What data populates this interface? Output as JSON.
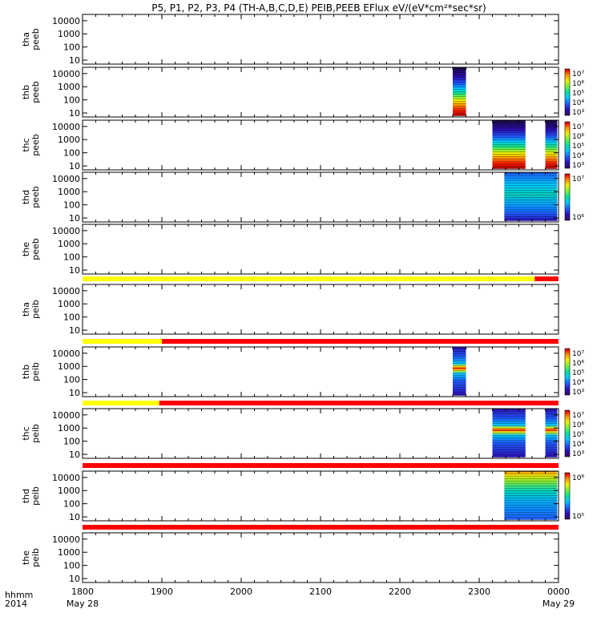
{
  "title": "P5, P1, P2, P3, P4 (TH-A,B,C,D,E) PEIB,PEEB EFlux eV/(eV*cm²*sec*sr)",
  "time_axis": {
    "label_line1": "hhmm",
    "label_line2": "2014",
    "ticks": [
      "1800",
      "1900",
      "2000",
      "2100",
      "2200",
      "2300",
      "0000"
    ],
    "date_start": "May 28",
    "date_end": "May 29"
  },
  "colormap": [
    "#3b0a5e",
    "#2b0fb4",
    "#1e5cff",
    "#00c8ff",
    "#00e0a0",
    "#70f040",
    "#f0f000",
    "#ff9000",
    "#ff2000",
    "#b00000"
  ],
  "chart_data": [
    {
      "type": "heatmap",
      "name": "tha_peeb",
      "ylabel": [
        "tha",
        "peeb"
      ],
      "yscale": "log",
      "ylim": [
        5,
        30000
      ],
      "yticks": [
        "10000",
        "1000",
        "100",
        "10"
      ],
      "xlim": [
        "2014-05-28 18:00",
        "2014-05-29 00:00"
      ],
      "blocks": [],
      "colorbar": null
    },
    {
      "type": "heatmap",
      "name": "thb_peeb",
      "ylabel": [
        "thb",
        "peeb"
      ],
      "yscale": "log",
      "ylim": [
        5,
        30000
      ],
      "yticks": [
        "10000",
        "1000",
        "100",
        "10"
      ],
      "xlim": [
        "2014-05-28 18:00",
        "2014-05-29 00:00"
      ],
      "blocks": [
        {
          "x_start": "22:40",
          "x_end": "22:50",
          "kind": "peeb_full"
        }
      ],
      "colorbar": {
        "labels": [
          "10⁷",
          "10⁶",
          "10⁵",
          "10⁴",
          "10³"
        ]
      }
    },
    {
      "type": "heatmap",
      "name": "thc_peeb",
      "ylabel": [
        "thc",
        "peeb"
      ],
      "yscale": "log",
      "ylim": [
        5,
        30000
      ],
      "yticks": [
        "10000",
        "1000",
        "100",
        "10"
      ],
      "xlim": [
        "2014-05-28 18:00",
        "2014-05-29 00:00"
      ],
      "blocks": [
        {
          "x_start": "23:10",
          "x_end": "23:35",
          "kind": "peeb_full"
        },
        {
          "x_start": "23:50",
          "x_end": "23:59",
          "kind": "peeb_full"
        }
      ],
      "colorbar": {
        "labels": [
          "10⁷",
          "10⁶",
          "10⁵",
          "10⁴",
          "10³"
        ]
      }
    },
    {
      "type": "heatmap",
      "name": "thd_peeb",
      "ylabel": [
        "thd",
        "peeb"
      ],
      "yscale": "log",
      "ylim": [
        5,
        30000
      ],
      "yticks": [
        "10000",
        "1000",
        "100",
        "10"
      ],
      "xlim": [
        "2014-05-28 18:00",
        "2014-05-29 00:00"
      ],
      "blocks": [
        {
          "x_start": "23:19",
          "x_end": "23:59",
          "kind": "thd_peeb"
        }
      ],
      "colorbar": {
        "labels": [
          "10⁷",
          "10⁶"
        ]
      }
    },
    {
      "type": "heatmap",
      "name": "the_peeb",
      "ylabel": [
        "the",
        "peeb"
      ],
      "yscale": "log",
      "ylim": [
        5,
        30000
      ],
      "yticks": [
        "10000",
        "1000",
        "100",
        "10"
      ],
      "xlim": [
        "2014-05-28 18:00",
        "2014-05-29 00:00"
      ],
      "blocks": [],
      "colorbar": null
    },
    {
      "type": "heatmap",
      "name": "tha_peib",
      "ylabel": [
        "tha",
        "peib"
      ],
      "yscale": "log",
      "ylim": [
        5,
        30000
      ],
      "yticks": [
        "10000",
        "1000",
        "100",
        "10"
      ],
      "xlim": [
        "2014-05-28 18:00",
        "2014-05-29 00:00"
      ],
      "blocks": [],
      "colorbar": null,
      "status_bar": [
        {
          "x_start": "18:00",
          "x_end": "23:42",
          "color": "#ffff00"
        },
        {
          "x_start": "23:42",
          "x_end": "24:00",
          "color": "#ff0000"
        }
      ]
    },
    {
      "type": "heatmap",
      "name": "thb_peib",
      "ylabel": [
        "thb",
        "peib"
      ],
      "yscale": "log",
      "ylim": [
        5,
        30000
      ],
      "yticks": [
        "10000",
        "1000",
        "100",
        "10"
      ],
      "xlim": [
        "2014-05-28 18:00",
        "2014-05-29 00:00"
      ],
      "blocks": [
        {
          "x_start": "22:40",
          "x_end": "22:50",
          "kind": "peib"
        }
      ],
      "colorbar": {
        "labels": [
          "10⁷",
          "10⁶",
          "10⁵",
          "10⁴",
          "10³"
        ]
      },
      "status_bar": [
        {
          "x_start": "18:00",
          "x_end": "19:00",
          "color": "#ffff00"
        },
        {
          "x_start": "19:00",
          "x_end": "24:00",
          "color": "#ff0000"
        }
      ]
    },
    {
      "type": "heatmap",
      "name": "thc_peib",
      "ylabel": [
        "thc",
        "peib"
      ],
      "yscale": "log",
      "ylim": [
        5,
        30000
      ],
      "yticks": [
        "10000",
        "1000",
        "100",
        "10"
      ],
      "xlim": [
        "2014-05-28 18:00",
        "2014-05-29 00:00"
      ],
      "blocks": [
        {
          "x_start": "23:10",
          "x_end": "23:35",
          "kind": "peib"
        },
        {
          "x_start": "23:50",
          "x_end": "23:59",
          "kind": "peib"
        }
      ],
      "colorbar": {
        "labels": [
          "10⁷",
          "10⁶",
          "10⁵",
          "10⁴",
          "10³"
        ]
      },
      "status_bar": [
        {
          "x_start": "18:00",
          "x_end": "18:58",
          "color": "#ffff00"
        },
        {
          "x_start": "18:58",
          "x_end": "24:00",
          "color": "#ff0000"
        }
      ]
    },
    {
      "type": "heatmap",
      "name": "thd_peib",
      "ylabel": [
        "thd",
        "peib"
      ],
      "yscale": "log",
      "ylim": [
        5,
        30000
      ],
      "yticks": [
        "10000",
        "1000",
        "100",
        "10"
      ],
      "xlim": [
        "2014-05-28 18:00",
        "2014-05-29 00:00"
      ],
      "blocks": [
        {
          "x_start": "23:19",
          "x_end": "23:59",
          "kind": "thd_peib"
        }
      ],
      "colorbar": {
        "labels": [
          "10⁶",
          "10⁵"
        ]
      },
      "status_bar": [
        {
          "x_start": "18:00",
          "x_end": "24:00",
          "color": "#ff0000"
        }
      ]
    },
    {
      "type": "heatmap",
      "name": "the_peib",
      "ylabel": [
        "the",
        "peib"
      ],
      "yscale": "log",
      "ylim": [
        5,
        30000
      ],
      "yticks": [
        "10000",
        "1000",
        "100",
        "10"
      ],
      "xlim": [
        "2014-05-28 18:00",
        "2014-05-29 00:00"
      ],
      "blocks": [],
      "colorbar": null,
      "status_bar": [
        {
          "x_start": "18:00",
          "x_end": "24:00",
          "color": "#ff0000"
        }
      ]
    }
  ]
}
